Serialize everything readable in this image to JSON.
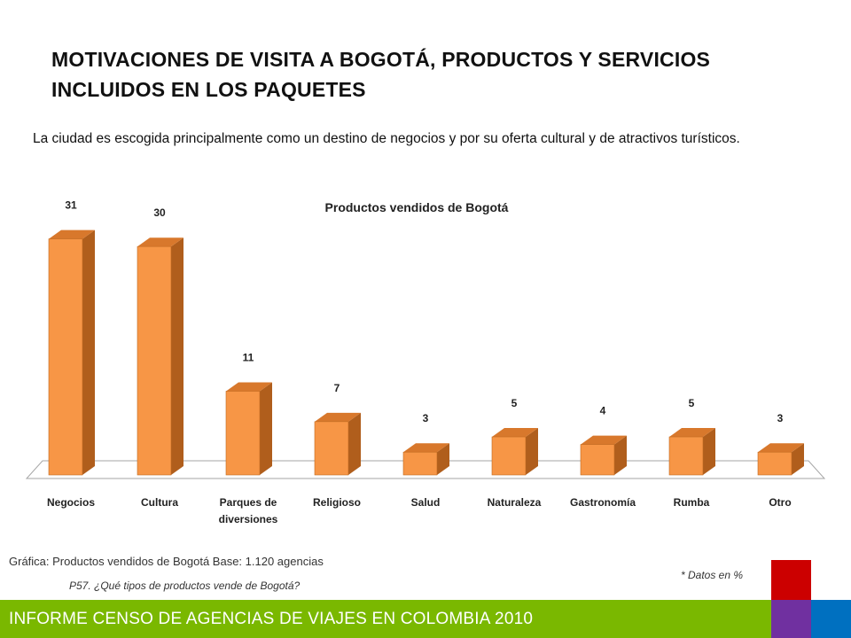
{
  "header": {
    "title": "MOTIVACIONES DE VISITA A BOGOTÁ, PRODUCTOS Y SERVICIOS INCLUIDOS EN LOS PAQUETES",
    "intro": "La ciudad es escogida principalmente como un destino de negocios y por su oferta cultural y de atractivos turísticos."
  },
  "chart_data": {
    "type": "bar",
    "title": "Productos vendidos de Bogotá",
    "categories": [
      "Negocios",
      "Cultura",
      "Parques de diversiones",
      "Religioso",
      "Salud",
      "Naturaleza",
      "Gastronomía",
      "Rumba",
      "Otro"
    ],
    "values": [
      31,
      30,
      11,
      7,
      3,
      5,
      4,
      5,
      3
    ],
    "xlabel": "",
    "ylabel": "",
    "ylim": [
      0,
      32
    ],
    "grid": false,
    "legend": "none",
    "style": "3d-column",
    "colors": {
      "bar_front": "#f79646",
      "bar_side": "#b05e1c",
      "bar_top": "#d8782c"
    }
  },
  "footnotes": {
    "caption": "Gráfica: Productos vendidos de Bogotá Base: 1.120 agencias",
    "question": "P57. ¿Qué tipos de productos vende de Bogotá?",
    "unit_note": "* Datos en %"
  },
  "footer": {
    "text": "INFORME CENSO DE AGENCIAS DE VIAJES EN COLOMBIA 2010",
    "colors": {
      "bar": "#7ab800",
      "red": "#cc0000",
      "purple": "#7030a0",
      "blue": "#0070c0"
    }
  }
}
